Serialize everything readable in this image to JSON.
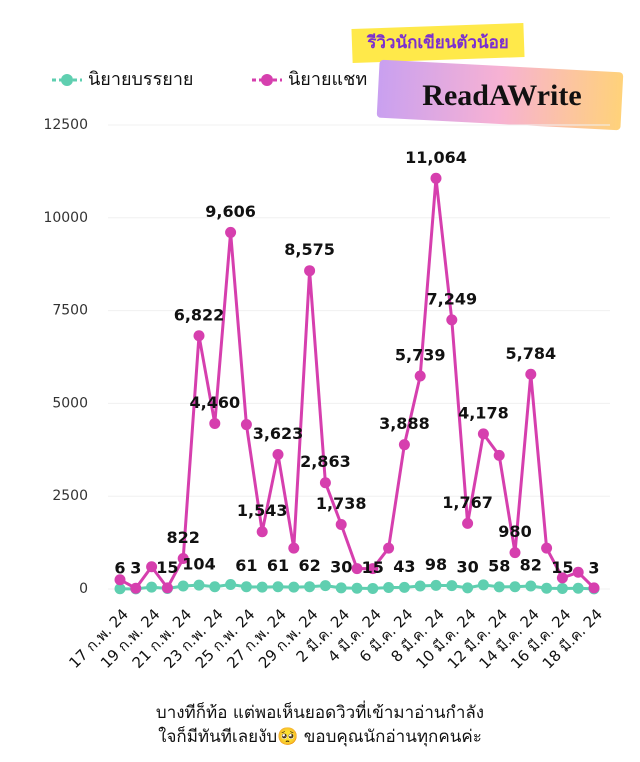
{
  "chart_data": {
    "type": "line",
    "legend": "top-left",
    "badge": {
      "tagline": "รีวิวนักเขียนตัวน้อย",
      "brand": "ReadAWrite"
    },
    "caption": [
      "บางทีก็ท้อ แต่พอเห็นยอดวิวที่เข้ามาอ่านกำลัง",
      "ใจก็มีทันทีเลยงับ🥺 ขอบคุณนักอ่านทุกคนค่ะ"
    ],
    "categories": [
      "17 ก.พ. 24",
      null,
      "19 ก.พ. 24",
      null,
      "21 ก.พ. 24",
      null,
      "23 ก.พ. 24",
      null,
      "25 ก.พ. 24",
      null,
      "27 ก.พ. 24",
      null,
      "29 ก.พ. 24",
      null,
      "2 มี.ค. 24",
      null,
      "4 มี.ค. 24",
      null,
      "6 มี.ค. 24",
      null,
      "8 มี.ค. 24",
      null,
      "10 มี.ค. 24",
      null,
      "12 มี.ค. 24",
      null,
      "14 มี.ค. 24",
      null,
      "16 มี.ค. 24",
      null,
      "18 มี.ค. 24"
    ],
    "ylim": [
      0,
      12500
    ],
    "yticks": [
      0,
      2500,
      5000,
      7500,
      10000,
      12500
    ],
    "grid": true,
    "series": [
      {
        "name": "นิยายบรรยาย",
        "color": "#5fcfb0",
        "values": [
          6,
          3,
          50,
          15,
          80,
          104,
          60,
          120,
          61,
          50,
          61,
          50,
          62,
          90,
          30,
          20,
          15,
          40,
          43,
          80,
          98,
          90,
          30,
          110,
          58,
          60,
          82,
          20,
          15,
          20,
          3
        ],
        "value_labels": [
          "6",
          "3",
          null,
          "15",
          null,
          "104",
          null,
          null,
          "61",
          null,
          "61",
          null,
          "62",
          null,
          "30",
          null,
          "15",
          null,
          "43",
          null,
          "98",
          null,
          "30",
          null,
          "58",
          null,
          "82",
          null,
          "15",
          null,
          "3"
        ]
      },
      {
        "name": "นิยายแชท",
        "color": "#d63fae",
        "values": [
          250,
          20,
          600,
          30,
          822,
          6822,
          4460,
          9606,
          4430,
          1543,
          3623,
          1100,
          8575,
          2863,
          1738,
          550,
          550,
          1100,
          3888,
          5739,
          11064,
          7249,
          1767,
          4178,
          3600,
          980,
          5784,
          1100,
          300,
          450,
          30
        ],
        "value_labels": [
          null,
          null,
          null,
          null,
          "822",
          "6,822",
          "4,460",
          "9,606",
          null,
          "1,543",
          "3,623",
          null,
          "8,575",
          "2,863",
          "1,738",
          null,
          null,
          null,
          "3,888",
          "5,739",
          "11,064",
          "7,249",
          "1,767",
          "4,178",
          null,
          "980",
          "5,784",
          null,
          null,
          null,
          null
        ]
      }
    ]
  }
}
